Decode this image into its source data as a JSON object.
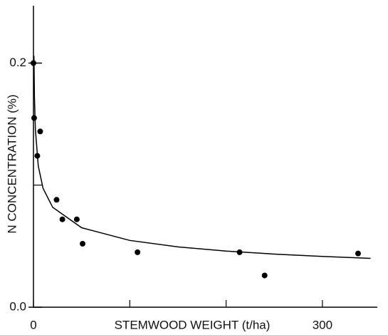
{
  "chart_data": {
    "type": "scatter",
    "x_label": "STEMWOOD WEIGHT (t/ha)",
    "y_label": "N CONCENTRATION (%)",
    "xlim": [
      0,
      357
    ],
    "ylim": [
      0,
      0.247
    ],
    "xticks": [
      0,
      300
    ],
    "xminor_ticks": [
      100,
      200
    ],
    "yticks": [
      {
        "value": 0,
        "label": "0.0"
      },
      {
        "value": 0.2,
        "label": "0.2"
      }
    ],
    "yminor_ticks": [
      0.1
    ],
    "points": {
      "color": "#000000",
      "x": [
        0,
        0.7,
        7,
        4,
        24,
        30,
        45,
        51,
        108,
        214,
        240,
        337
      ],
      "y": [
        0.2,
        0.155,
        0.144,
        0.124,
        0.088,
        0.072,
        0.072,
        0.052,
        0.045,
        0.045,
        0.026,
        0.044
      ]
    },
    "curve": {
      "color": "#000000",
      "x": [
        0.5,
        1,
        2,
        5,
        10,
        20,
        50,
        100,
        150,
        200,
        250,
        300,
        350
      ],
      "y": [
        0.206,
        0.173,
        0.1455,
        0.1157,
        0.0973,
        0.0818,
        0.0651,
        0.0547,
        0.0494,
        0.046,
        0.0435,
        0.0416,
        0.04
      ]
    }
  }
}
